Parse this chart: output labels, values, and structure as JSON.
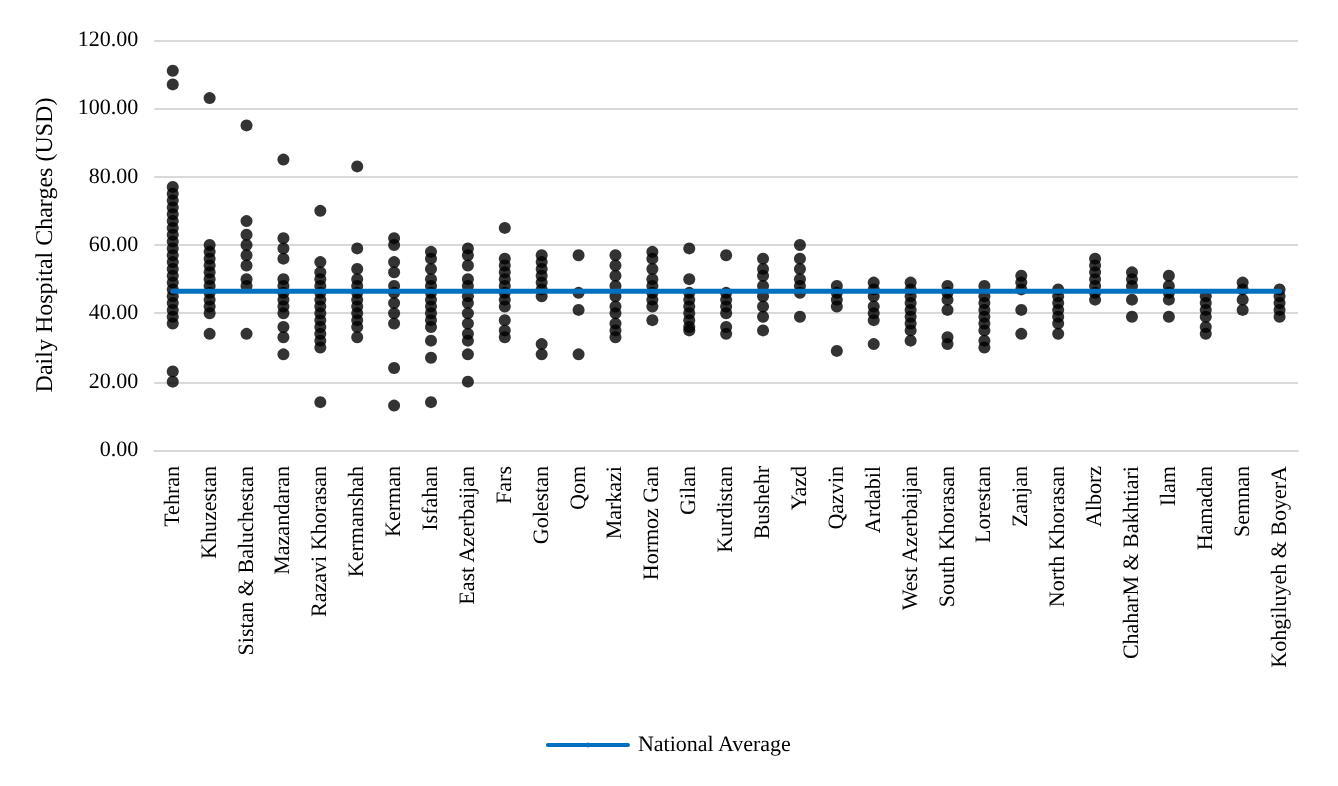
{
  "chart_data": {
    "type": "scatter",
    "ylabel": "Daily Hospital Charges (USD)",
    "categories": [
      "Tehran",
      "Khuzestan",
      "Sistan & Baluchestan",
      "Mazandaran",
      "Razavi Khorasan",
      "Kermanshah",
      "Kerman",
      "Isfahan",
      "East Azerbaijan",
      "Fars",
      "Golestan",
      "Qom",
      "Markazi",
      "Hormoz Gan",
      "Gilan",
      "Kurdistan",
      "Bushehr",
      "Yazd",
      "Qazvin",
      "Ardabil",
      "West Azerbaijan",
      "South Khorasan",
      "Lorestan",
      "Zanjan",
      "North Khorasan",
      "Alborz",
      "ChaharM & Bakhtiari",
      "Ilam",
      "Hamadan",
      "Semnan",
      "Kohgiluyeh & BoyerA"
    ],
    "series": [
      {
        "color": "#000000",
        "marker": "circle",
        "x": [
          "Tehran",
          "Tehran",
          "Tehran",
          "Tehran",
          "Tehran",
          "Tehran",
          "Tehran",
          "Tehran",
          "Tehran",
          "Tehran",
          "Tehran",
          "Tehran",
          "Tehran",
          "Tehran",
          "Tehran",
          "Tehran",
          "Tehran",
          "Tehran",
          "Tehran",
          "Tehran",
          "Tehran",
          "Tehran",
          "Tehran",
          "Tehran",
          "Tehran",
          "Khuzestan",
          "Khuzestan",
          "Khuzestan",
          "Khuzestan",
          "Khuzestan",
          "Khuzestan",
          "Khuzestan",
          "Khuzestan",
          "Khuzestan",
          "Khuzestan",
          "Khuzestan",
          "Khuzestan",
          "Khuzestan",
          "Sistan & Baluchestan",
          "Sistan & Baluchestan",
          "Sistan & Baluchestan",
          "Sistan & Baluchestan",
          "Sistan & Baluchestan",
          "Sistan & Baluchestan",
          "Sistan & Baluchestan",
          "Sistan & Baluchestan",
          "Sistan & Baluchestan",
          "Mazandaran",
          "Mazandaran",
          "Mazandaran",
          "Mazandaran",
          "Mazandaran",
          "Mazandaran",
          "Mazandaran",
          "Mazandaran",
          "Mazandaran",
          "Mazandaran",
          "Mazandaran",
          "Mazandaran",
          "Mazandaran",
          "Razavi Khorasan",
          "Razavi Khorasan",
          "Razavi Khorasan",
          "Razavi Khorasan",
          "Razavi Khorasan",
          "Razavi Khorasan",
          "Razavi Khorasan",
          "Razavi Khorasan",
          "Razavi Khorasan",
          "Razavi Khorasan",
          "Razavi Khorasan",
          "Razavi Khorasan",
          "Razavi Khorasan",
          "Razavi Khorasan",
          "Razavi Khorasan",
          "Kermanshah",
          "Kermanshah",
          "Kermanshah",
          "Kermanshah",
          "Kermanshah",
          "Kermanshah",
          "Kermanshah",
          "Kermanshah",
          "Kermanshah",
          "Kermanshah",
          "Kermanshah",
          "Kermanshah",
          "Kerman",
          "Kerman",
          "Kerman",
          "Kerman",
          "Kerman",
          "Kerman",
          "Kerman",
          "Kerman",
          "Kerman",
          "Kerman",
          "Kerman",
          "Isfahan",
          "Isfahan",
          "Isfahan",
          "Isfahan",
          "Isfahan",
          "Isfahan",
          "Isfahan",
          "Isfahan",
          "Isfahan",
          "Isfahan",
          "Isfahan",
          "Isfahan",
          "Isfahan",
          "Isfahan",
          "East Azerbaijan",
          "East Azerbaijan",
          "East Azerbaijan",
          "East Azerbaijan",
          "East Azerbaijan",
          "East Azerbaijan",
          "East Azerbaijan",
          "East Azerbaijan",
          "East Azerbaijan",
          "East Azerbaijan",
          "East Azerbaijan",
          "East Azerbaijan",
          "East Azerbaijan",
          "Fars",
          "Fars",
          "Fars",
          "Fars",
          "Fars",
          "Fars",
          "Fars",
          "Fars",
          "Fars",
          "Fars",
          "Fars",
          "Fars",
          "Golestan",
          "Golestan",
          "Golestan",
          "Golestan",
          "Golestan",
          "Golestan",
          "Golestan",
          "Golestan",
          "Golestan",
          "Qom",
          "Qom",
          "Qom",
          "Qom",
          "Markazi",
          "Markazi",
          "Markazi",
          "Markazi",
          "Markazi",
          "Markazi",
          "Markazi",
          "Markazi",
          "Markazi",
          "Markazi",
          "Hormoz Gan",
          "Hormoz Gan",
          "Hormoz Gan",
          "Hormoz Gan",
          "Hormoz Gan",
          "Hormoz Gan",
          "Hormoz Gan",
          "Hormoz Gan",
          "Hormoz Gan",
          "Gilan",
          "Gilan",
          "Gilan",
          "Gilan",
          "Gilan",
          "Gilan",
          "Gilan",
          "Gilan",
          "Gilan",
          "Kurdistan",
          "Kurdistan",
          "Kurdistan",
          "Kurdistan",
          "Kurdistan",
          "Kurdistan",
          "Kurdistan",
          "Bushehr",
          "Bushehr",
          "Bushehr",
          "Bushehr",
          "Bushehr",
          "Bushehr",
          "Bushehr",
          "Bushehr",
          "Yazd",
          "Yazd",
          "Yazd",
          "Yazd",
          "Yazd",
          "Yazd",
          "Yazd",
          "Qazvin",
          "Qazvin",
          "Qazvin",
          "Qazvin",
          "Qazvin",
          "Ardabil",
          "Ardabil",
          "Ardabil",
          "Ardabil",
          "Ardabil",
          "Ardabil",
          "Ardabil",
          "West Azerbaijan",
          "West Azerbaijan",
          "West Azerbaijan",
          "West Azerbaijan",
          "West Azerbaijan",
          "West Azerbaijan",
          "West Azerbaijan",
          "West Azerbaijan",
          "West Azerbaijan",
          "South Khorasan",
          "South Khorasan",
          "South Khorasan",
          "South Khorasan",
          "South Khorasan",
          "South Khorasan",
          "Lorestan",
          "Lorestan",
          "Lorestan",
          "Lorestan",
          "Lorestan",
          "Lorestan",
          "Lorestan",
          "Lorestan",
          "Lorestan",
          "Zanjan",
          "Zanjan",
          "Zanjan",
          "Zanjan",
          "Zanjan",
          "North Khorasan",
          "North Khorasan",
          "North Khorasan",
          "North Khorasan",
          "North Khorasan",
          "North Khorasan",
          "North Khorasan",
          "Alborz",
          "Alborz",
          "Alborz",
          "Alborz",
          "Alborz",
          "Alborz",
          "Alborz",
          "ChaharM & Bakhtiari",
          "ChaharM & Bakhtiari",
          "ChaharM & Bakhtiari",
          "ChaharM & Bakhtiari",
          "ChaharM & Bakhtiari",
          "Ilam",
          "Ilam",
          "Ilam",
          "Ilam",
          "Ilam",
          "Hamadan",
          "Hamadan",
          "Hamadan",
          "Hamadan",
          "Hamadan",
          "Hamadan",
          "Semnan",
          "Semnan",
          "Semnan",
          "Semnan",
          "Kohgiluyeh & BoyerA",
          "Kohgiluyeh & BoyerA",
          "Kohgiluyeh & BoyerA",
          "Kohgiluyeh & BoyerA",
          "Kohgiluyeh & BoyerA"
        ],
        "values": [
          111,
          107,
          77,
          75,
          73,
          71,
          69,
          67,
          65,
          63,
          61,
          59,
          57,
          55,
          53,
          51,
          49,
          47,
          45,
          43,
          41,
          39,
          37,
          23,
          20,
          103,
          60,
          58,
          56,
          54,
          52,
          50,
          48,
          46,
          44,
          42,
          40,
          34,
          95,
          67,
          63,
          60,
          57,
          54,
          50,
          48,
          34,
          85,
          62,
          59,
          56,
          50,
          48,
          46,
          44,
          42,
          40,
          36,
          33,
          28,
          70,
          55,
          52,
          50,
          48,
          46,
          44,
          42,
          40,
          38,
          36,
          34,
          32,
          30,
          14,
          83,
          59,
          53,
          50,
          48,
          46,
          44,
          42,
          40,
          38,
          36,
          33,
          62,
          60,
          55,
          52,
          48,
          46,
          43,
          40,
          37,
          24,
          13,
          58,
          56,
          53,
          50,
          48,
          46,
          44,
          42,
          40,
          38,
          36,
          32,
          27,
          14,
          59,
          57,
          54,
          50,
          48,
          45,
          43,
          40,
          37,
          34,
          32,
          28,
          20,
          65,
          56,
          54,
          52,
          50,
          48,
          46,
          44,
          42,
          38,
          35,
          33,
          57,
          55,
          53,
          51,
          49,
          47,
          45,
          31,
          28,
          57,
          46,
          41,
          28,
          57,
          54,
          51,
          48,
          45,
          42,
          40,
          37,
          35,
          33,
          58,
          56,
          53,
          50,
          48,
          46,
          44,
          42,
          38,
          59,
          50,
          46,
          44,
          42,
          40,
          38,
          36,
          35,
          57,
          46,
          44,
          42,
          40,
          36,
          34,
          56,
          53,
          51,
          48,
          45,
          42,
          39,
          35,
          60,
          56,
          53,
          50,
          48,
          46,
          39,
          48,
          46,
          44,
          42,
          29,
          49,
          47,
          45,
          42,
          40,
          38,
          31,
          49,
          47,
          45,
          43,
          41,
          39,
          37,
          35,
          32,
          48,
          46,
          44,
          41,
          33,
          31,
          48,
          45,
          43,
          41,
          39,
          37,
          35,
          32,
          30,
          51,
          49,
          47,
          41,
          34,
          47,
          45,
          43,
          41,
          39,
          37,
          34,
          56,
          54,
          52,
          50,
          48,
          46,
          44,
          52,
          50,
          48,
          44,
          39,
          51,
          48,
          46,
          44,
          39,
          45,
          43,
          41,
          39,
          36,
          34,
          49,
          47,
          44,
          41,
          47,
          45,
          43,
          41,
          39
        ]
      },
      {
        "type": "line",
        "name": "National Average",
        "color": "#0070c0",
        "marker": "none",
        "line_style": "solid",
        "values": [
          46.5,
          46.5,
          46.5,
          46.5,
          46.5,
          46.5,
          46.5,
          46.5,
          46.5,
          46.5,
          46.5,
          46.5,
          46.5,
          46.5,
          46.5,
          46.5,
          46.5,
          46.5,
          46.5,
          46.5,
          46.5,
          46.5,
          46.5,
          46.5,
          46.5,
          46.5,
          46.5,
          46.5,
          46.5,
          46.5,
          46.5
        ]
      }
    ],
    "ylim": [
      0,
      120
    ],
    "yticks": [
      {
        "value": 0,
        "label": "0.00"
      },
      {
        "value": 20,
        "label": "20.00"
      },
      {
        "value": 40,
        "label": "40.00"
      },
      {
        "value": 60,
        "label": "60.00"
      },
      {
        "value": 80,
        "label": "80.00"
      },
      {
        "value": 100,
        "label": "100.00"
      },
      {
        "value": 120,
        "label": "120.00"
      }
    ],
    "grid": "y",
    "legend": "bottom"
  }
}
